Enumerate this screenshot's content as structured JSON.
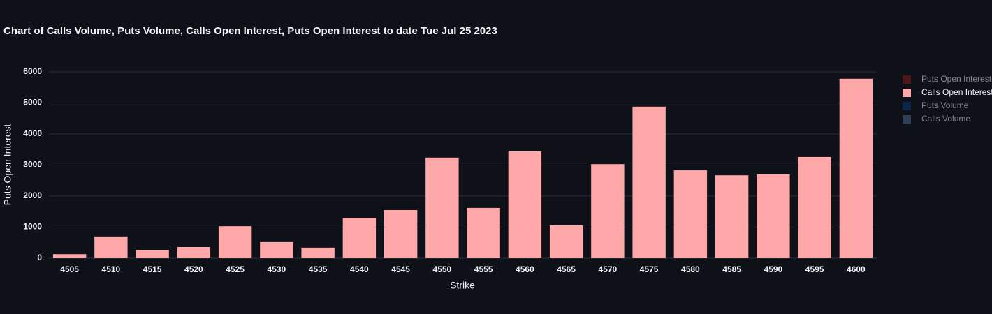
{
  "chart_data": {
    "type": "bar",
    "title": "Chart of Calls Volume, Puts Volume, Calls Open Interest, Puts Open Interest to date Tue Jul 25 2023",
    "xlabel": "Strike",
    "ylabel": "Puts Open Interest",
    "categories": [
      "4505",
      "4510",
      "4515",
      "4520",
      "4525",
      "4530",
      "4535",
      "4540",
      "4545",
      "4550",
      "4555",
      "4560",
      "4565",
      "4570",
      "4575",
      "4580",
      "4585",
      "4590",
      "4595",
      "4600"
    ],
    "series": [
      {
        "name": "Puts Open Interest",
        "color": "#8c1c1c",
        "visible": false,
        "values": [
          null,
          null,
          null,
          null,
          null,
          null,
          null,
          null,
          null,
          null,
          null,
          null,
          null,
          null,
          null,
          null,
          null,
          null,
          null,
          null
        ]
      },
      {
        "name": "Calls Open Interest",
        "color": "#ffa8aa",
        "visible": true,
        "values": [
          130,
          700,
          270,
          360,
          1030,
          520,
          340,
          1300,
          1550,
          3240,
          1620,
          3440,
          1060,
          3030,
          4880,
          2830,
          2670,
          2700,
          3260,
          5780
        ]
      },
      {
        "name": "Puts Volume",
        "color": "#0b3b7a",
        "visible": false,
        "values": [
          null,
          null,
          null,
          null,
          null,
          null,
          null,
          null,
          null,
          null,
          null,
          null,
          null,
          null,
          null,
          null,
          null,
          null,
          null,
          null
        ]
      },
      {
        "name": "Calls Volume",
        "color": "#4f6d8f",
        "visible": false,
        "values": [
          null,
          null,
          null,
          null,
          null,
          null,
          null,
          null,
          null,
          null,
          null,
          null,
          null,
          null,
          null,
          null,
          null,
          null,
          null,
          null
        ]
      }
    ],
    "ylim": [
      0,
      6000
    ],
    "yticks": [
      0,
      1000,
      2000,
      3000,
      4000,
      5000,
      6000
    ],
    "grid": true,
    "legend": "right"
  }
}
